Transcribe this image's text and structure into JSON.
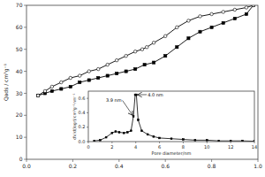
{
  "chart_data": [
    {
      "type": "line",
      "ylabel": "Qads / cm³g⁻¹",
      "xlim": [
        0.0,
        1.0
      ],
      "ylim": [
        0,
        70
      ],
      "xticks": [
        {
          "value": 0.0,
          "label": "0.0"
        },
        0.2,
        0.4,
        0.6,
        0.8,
        {
          "value": 1.0,
          "label": "1.0"
        }
      ],
      "yticks": [
        0,
        10,
        20,
        30,
        40,
        50,
        60,
        70
      ],
      "grid": false,
      "series": [
        {
          "color": "#000000",
          "marker": "square",
          "x": [
            0.05,
            0.08,
            0.11,
            0.15,
            0.19,
            0.23,
            0.27,
            0.31,
            0.35,
            0.39,
            0.43,
            0.47,
            0.51,
            0.55,
            0.6,
            0.65,
            0.7,
            0.75,
            0.8,
            0.85,
            0.9,
            0.95,
            0.98
          ],
          "values": [
            29,
            30,
            31,
            32,
            33,
            35,
            36,
            37,
            38,
            39,
            40,
            41,
            43,
            44,
            47,
            51,
            55,
            58,
            60,
            62,
            64,
            66,
            70
          ]
        },
        {
          "color": "#000000",
          "marker": "open-circle",
          "x": [
            0.98,
            0.95,
            0.9,
            0.85,
            0.8,
            0.75,
            0.7,
            0.65,
            0.6,
            0.55,
            0.52,
            0.5,
            0.47,
            0.43,
            0.39,
            0.35,
            0.31,
            0.27,
            0.23,
            0.19,
            0.15,
            0.11,
            0.08,
            0.05
          ],
          "values": [
            70,
            69,
            68,
            67,
            66,
            65,
            63,
            60,
            56,
            53,
            51,
            50,
            49,
            47,
            45,
            43,
            41,
            40,
            38,
            37,
            35,
            33,
            31,
            29
          ]
        }
      ]
    },
    {
      "type": "line",
      "xlabel": "Pore diameter/nm",
      "ylabel": "dV/d(logr)/cm³g⁻¹nm⁻¹",
      "xlim": [
        0,
        14
      ],
      "ylim": [
        0.0,
        0.7
      ],
      "xticks": [
        0,
        2,
        4,
        6,
        8,
        10,
        12,
        14
      ],
      "yticks": [
        {
          "value": 0.0,
          "label": "0.0"
        },
        0.2,
        0.4,
        0.6
      ],
      "grid": false,
      "series": [
        {
          "color": "#000000",
          "marker": "square",
          "x": [
            0.5,
            1.0,
            1.5,
            2.0,
            2.3,
            2.6,
            3.0,
            3.3,
            3.6,
            3.8,
            3.95,
            4.05,
            4.2,
            4.5,
            5.0,
            5.5,
            6.0,
            7.0,
            8.0,
            9.0,
            10.0,
            11.0,
            12.0,
            13.0,
            14.0
          ],
          "values": [
            0.01,
            0.02,
            0.06,
            0.12,
            0.14,
            0.13,
            0.12,
            0.13,
            0.15,
            0.35,
            0.65,
            0.65,
            0.3,
            0.15,
            0.1,
            0.07,
            0.05,
            0.04,
            0.03,
            0.02,
            0.02,
            0.01,
            0.01,
            0.01,
            0.005
          ]
        }
      ],
      "annotations": [
        {
          "text": "3.9 nm",
          "x": 3.8,
          "y": 0.35,
          "text_x": 2.8,
          "text_y": 0.55
        },
        {
          "text": "4.0 nm",
          "x": 4.05,
          "y": 0.65,
          "text_x": 5.0,
          "text_y": 0.63
        }
      ]
    }
  ]
}
